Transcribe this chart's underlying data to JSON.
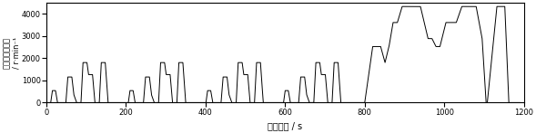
{
  "xlabel": "测试时间 / s",
  "ylabel": "后桥输入端转速\n/ r·min⁻¹",
  "xlim": [
    0,
    1200
  ],
  "ylim": [
    0,
    4500
  ],
  "yticks": [
    0,
    1000,
    2000,
    3000,
    4000
  ],
  "xticks": [
    0,
    200,
    400,
    600,
    800,
    1000,
    1200
  ],
  "line_color": "#000000",
  "background_color": "#ffffff",
  "xlabel_fontsize": 7,
  "ylabel_fontsize": 6,
  "tick_fontsize": 6,
  "rpm_factor": 36.0,
  "nedc_profile": [
    [
      0,
      0
    ],
    [
      11,
      0
    ],
    [
      11,
      0
    ],
    [
      15,
      15
    ],
    [
      15,
      15
    ],
    [
      23,
      15
    ],
    [
      23,
      15
    ],
    [
      28,
      0
    ],
    [
      28,
      0
    ],
    [
      49,
      0
    ],
    [
      49,
      0
    ],
    [
      54,
      32
    ],
    [
      54,
      32
    ],
    [
      64,
      32
    ],
    [
      64,
      32
    ],
    [
      69,
      10
    ],
    [
      69,
      10
    ],
    [
      76,
      0
    ],
    [
      76,
      0
    ],
    [
      87,
      0
    ],
    [
      87,
      0
    ],
    [
      92,
      50
    ],
    [
      92,
      50
    ],
    [
      102,
      50
    ],
    [
      102,
      50
    ],
    [
      106,
      35
    ],
    [
      106,
      35
    ],
    [
      116,
      35
    ],
    [
      116,
      35
    ],
    [
      122,
      0
    ],
    [
      122,
      0
    ],
    [
      133,
      0
    ],
    [
      133,
      0
    ],
    [
      138,
      50
    ],
    [
      138,
      50
    ],
    [
      148,
      50
    ],
    [
      148,
      50
    ],
    [
      155,
      0
    ],
    [
      155,
      0
    ],
    [
      195,
      0
    ],
    [
      195,
      0
    ],
    [
      206,
      0
    ],
    [
      206,
      0
    ],
    [
      210,
      15
    ],
    [
      210,
      15
    ],
    [
      218,
      15
    ],
    [
      218,
      15
    ],
    [
      223,
      0
    ],
    [
      223,
      0
    ],
    [
      244,
      0
    ],
    [
      244,
      0
    ],
    [
      249,
      32
    ],
    [
      249,
      32
    ],
    [
      259,
      32
    ],
    [
      259,
      32
    ],
    [
      264,
      10
    ],
    [
      264,
      10
    ],
    [
      271,
      0
    ],
    [
      271,
      0
    ],
    [
      282,
      0
    ],
    [
      282,
      0
    ],
    [
      287,
      50
    ],
    [
      287,
      50
    ],
    [
      297,
      50
    ],
    [
      297,
      50
    ],
    [
      301,
      35
    ],
    [
      301,
      35
    ],
    [
      311,
      35
    ],
    [
      311,
      35
    ],
    [
      317,
      0
    ],
    [
      317,
      0
    ],
    [
      328,
      0
    ],
    [
      328,
      0
    ],
    [
      333,
      50
    ],
    [
      333,
      50
    ],
    [
      343,
      50
    ],
    [
      343,
      50
    ],
    [
      350,
      0
    ],
    [
      350,
      0
    ],
    [
      390,
      0
    ],
    [
      390,
      0
    ],
    [
      401,
      0
    ],
    [
      401,
      0
    ],
    [
      405,
      15
    ],
    [
      405,
      15
    ],
    [
      413,
      15
    ],
    [
      413,
      15
    ],
    [
      418,
      0
    ],
    [
      418,
      0
    ],
    [
      439,
      0
    ],
    [
      439,
      0
    ],
    [
      444,
      32
    ],
    [
      444,
      32
    ],
    [
      454,
      32
    ],
    [
      454,
      32
    ],
    [
      459,
      10
    ],
    [
      459,
      10
    ],
    [
      466,
      0
    ],
    [
      466,
      0
    ],
    [
      477,
      0
    ],
    [
      477,
      0
    ],
    [
      482,
      50
    ],
    [
      482,
      50
    ],
    [
      492,
      50
    ],
    [
      492,
      50
    ],
    [
      496,
      35
    ],
    [
      496,
      35
    ],
    [
      506,
      35
    ],
    [
      506,
      35
    ],
    [
      512,
      0
    ],
    [
      512,
      0
    ],
    [
      523,
      0
    ],
    [
      523,
      0
    ],
    [
      528,
      50
    ],
    [
      528,
      50
    ],
    [
      538,
      50
    ],
    [
      538,
      50
    ],
    [
      545,
      0
    ],
    [
      545,
      0
    ],
    [
      585,
      0
    ],
    [
      585,
      0
    ],
    [
      596,
      0
    ],
    [
      596,
      0
    ],
    [
      600,
      15
    ],
    [
      600,
      15
    ],
    [
      608,
      15
    ],
    [
      608,
      15
    ],
    [
      613,
      0
    ],
    [
      613,
      0
    ],
    [
      634,
      0
    ],
    [
      634,
      0
    ],
    [
      639,
      32
    ],
    [
      639,
      32
    ],
    [
      649,
      32
    ],
    [
      649,
      32
    ],
    [
      654,
      10
    ],
    [
      654,
      10
    ],
    [
      661,
      0
    ],
    [
      661,
      0
    ],
    [
      672,
      0
    ],
    [
      672,
      0
    ],
    [
      677,
      50
    ],
    [
      677,
      50
    ],
    [
      687,
      50
    ],
    [
      687,
      50
    ],
    [
      691,
      35
    ],
    [
      691,
      35
    ],
    [
      701,
      35
    ],
    [
      701,
      35
    ],
    [
      707,
      0
    ],
    [
      707,
      0
    ],
    [
      718,
      0
    ],
    [
      718,
      0
    ],
    [
      723,
      50
    ],
    [
      723,
      50
    ],
    [
      733,
      50
    ],
    [
      733,
      50
    ],
    [
      740,
      0
    ],
    [
      740,
      0
    ],
    [
      780,
      0
    ],
    [
      780,
      0
    ],
    [
      800,
      0
    ],
    [
      800,
      0
    ],
    [
      820,
      70
    ],
    [
      820,
      70
    ],
    [
      840,
      70
    ],
    [
      840,
      70
    ],
    [
      851,
      50
    ],
    [
      851,
      50
    ],
    [
      861,
      70
    ],
    [
      861,
      70
    ],
    [
      871,
      100
    ],
    [
      871,
      100
    ],
    [
      882,
      100
    ],
    [
      882,
      100
    ],
    [
      894,
      120
    ],
    [
      894,
      120
    ],
    [
      940,
      120
    ],
    [
      940,
      120
    ],
    [
      959,
      80
    ],
    [
      959,
      80
    ],
    [
      969,
      80
    ],
    [
      969,
      80
    ],
    [
      979,
      70
    ],
    [
      979,
      70
    ],
    [
      979,
      70
    ],
    [
      989,
      70
    ],
    [
      989,
      70
    ],
    [
      1004,
      100
    ],
    [
      1004,
      100
    ],
    [
      1030,
      100
    ],
    [
      1030,
      100
    ],
    [
      1044,
      120
    ],
    [
      1044,
      120
    ],
    [
      1080,
      120
    ],
    [
      1080,
      120
    ],
    [
      1095,
      80
    ],
    [
      1095,
      80
    ],
    [
      1105,
      0
    ],
    [
      1105,
      0
    ],
    [
      1108,
      0
    ],
    [
      1108,
      0
    ],
    [
      1132,
      120
    ],
    [
      1132,
      120
    ],
    [
      1152,
      120
    ],
    [
      1152,
      120
    ],
    [
      1162,
      0
    ],
    [
      1162,
      0
    ],
    [
      1190,
      0
    ]
  ]
}
